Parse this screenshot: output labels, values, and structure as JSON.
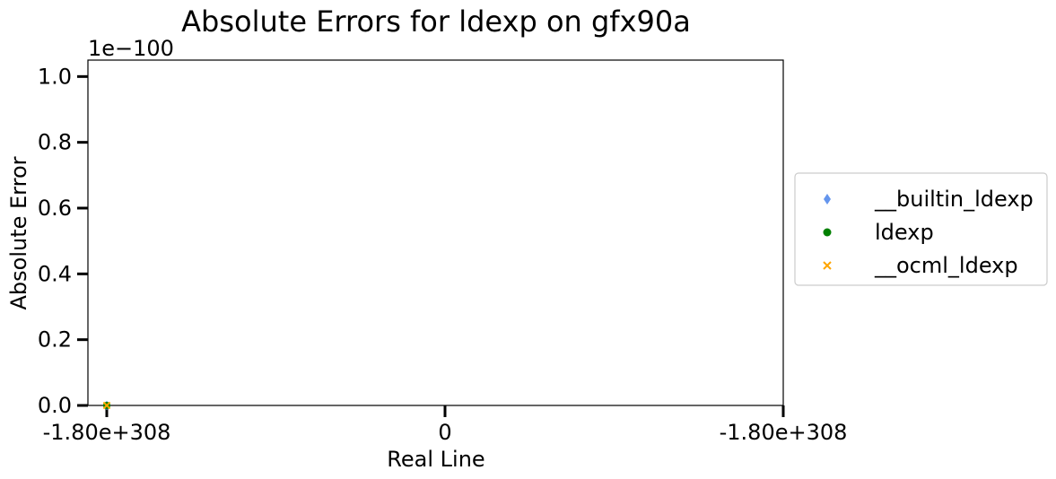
{
  "chart_data": {
    "type": "scatter",
    "title": "Absolute Errors for ldexp on gfx90a",
    "xlabel": "Real Line",
    "ylabel": "Absolute Error",
    "y_offset_text": "1e−100",
    "ylim": [
      0,
      1.05
    ],
    "yticks": [
      0.0,
      0.2,
      0.4,
      0.6,
      0.8,
      1.0
    ],
    "ytick_labels": [
      "0.0",
      "0.2",
      "0.4",
      "0.6",
      "0.8",
      "1.0"
    ],
    "xtick_labels": [
      "-1.80e+308",
      "0",
      "-1.80e+308"
    ],
    "legend_position": "right, outside plot",
    "series": [
      {
        "name": "__builtin_ldexp",
        "marker": "diamond",
        "color": "#6495ED",
        "points": [
          {
            "x": "-1.80e+308",
            "y": 0
          }
        ]
      },
      {
        "name": "ldexp",
        "marker": "circle",
        "color": "#008000",
        "points": [
          {
            "x": "-1.80e+308",
            "y": 0
          }
        ]
      },
      {
        "name": "__ocml_ldexp",
        "marker": "x",
        "color": "#FFA500",
        "points": [
          {
            "x": "-1.80e+308",
            "y": 0
          }
        ]
      }
    ]
  }
}
